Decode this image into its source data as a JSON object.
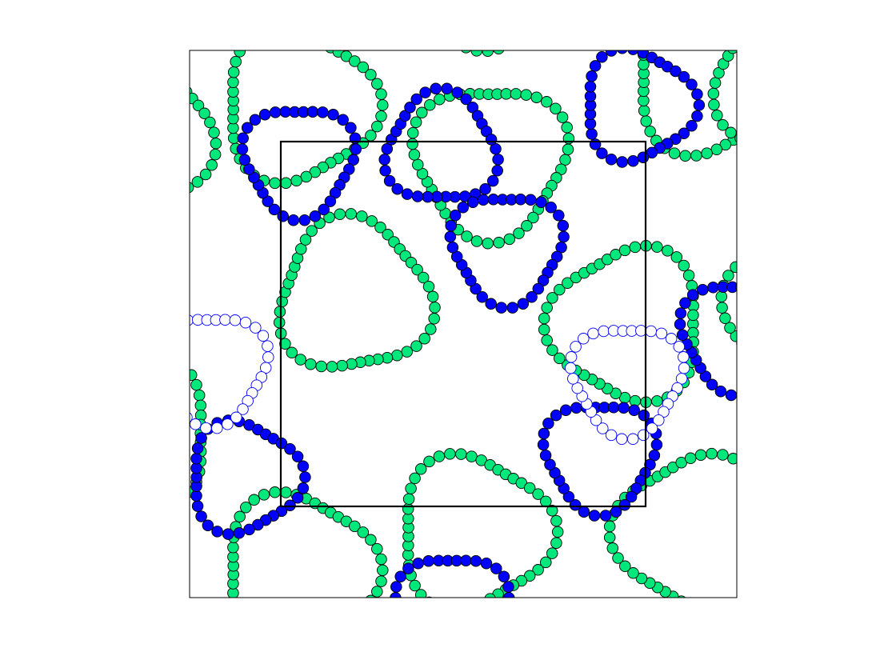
{
  "figure": {
    "colors": {
      "background": "#ffffff",
      "frame": "#000000",
      "inner_box": "#000000",
      "green_fill": "#00e87c",
      "green_stroke": "#000000",
      "blue_fill": "#0000ff",
      "blue_stroke": "#000000",
      "blue_hollow_stroke": "#0000ff"
    },
    "rings": [
      {
        "kind": "green",
        "center": [
          0.52,
          0.88
        ],
        "radius": 0.22,
        "angle": 0
      },
      {
        "kind": "green",
        "center": [
          0.92,
          0.88
        ],
        "radius": 0.22,
        "angle": 60
      },
      {
        "kind": "green",
        "center": [
          0.3,
          0.45
        ],
        "radius": 0.22,
        "angle": 20
      },
      {
        "kind": "green",
        "center": [
          0.55,
          0.2
        ],
        "radius": 0.22,
        "angle": 90
      },
      {
        "kind": "green",
        "center": [
          0.8,
          0.5
        ],
        "radius": 0.22,
        "angle": 180
      },
      {
        "kind": "green",
        "center": [
          1.12,
          0.48
        ],
        "radius": 0.22,
        "angle": 200
      },
      {
        "kind": "green",
        "center": [
          0.95,
          0.05
        ],
        "radius": 0.22,
        "angle": 240
      },
      {
        "kind": "green",
        "center": [
          0.2,
          0.95
        ],
        "radius": 0.22,
        "angle": 0
      },
      {
        "kind": "green",
        "center": [
          0.2,
          0.1
        ],
        "radius": 0.22,
        "angle": 0
      },
      {
        "kind": "green",
        "center": [
          0.55,
          -0.15
        ],
        "radius": 0.22,
        "angle": 100
      },
      {
        "kind": "green",
        "center": [
          1.1,
          0.05
        ],
        "radius": 0.22,
        "angle": 150
      },
      {
        "kind": "green",
        "center": [
          -0.1,
          0.15
        ],
        "radius": 0.22,
        "angle": 20
      },
      {
        "kind": "green",
        "center": [
          -0.1,
          0.7
        ],
        "radius": 0.22,
        "angle": 180
      },
      {
        "kind": "blue",
        "center": [
          0.46,
          0.18
        ],
        "radius": 0.16,
        "angle": -90
      },
      {
        "kind": "blue",
        "center": [
          0.2,
          0.2
        ],
        "radius": 0.16,
        "angle": 90
      },
      {
        "kind": "blue",
        "center": [
          0.58,
          0.36
        ],
        "radius": 0.16,
        "angle": 90
      },
      {
        "kind": "blue",
        "center": [
          0.75,
          0.74
        ],
        "radius": 0.16,
        "angle": 90
      },
      {
        "kind": "blue",
        "center": [
          1.0,
          0.52
        ],
        "radius": 0.16,
        "angle": 90
      },
      {
        "kind": "blue",
        "center": [
          0.1,
          0.78
        ],
        "radius": 0.16,
        "angle": 120
      },
      {
        "kind": "blue",
        "center": [
          0.48,
          1.02
        ],
        "radius": 0.16,
        "angle": 90
      },
      {
        "kind": "blue",
        "center": [
          0.82,
          0.1
        ],
        "radius": 0.16,
        "angle": 120
      },
      {
        "kind": "hollow",
        "center": [
          0.04,
          0.58
        ],
        "radius": 0.16,
        "angle": 90
      },
      {
        "kind": "hollow",
        "center": [
          0.8,
          0.6
        ],
        "radius": 0.16,
        "angle": 90
      }
    ]
  }
}
